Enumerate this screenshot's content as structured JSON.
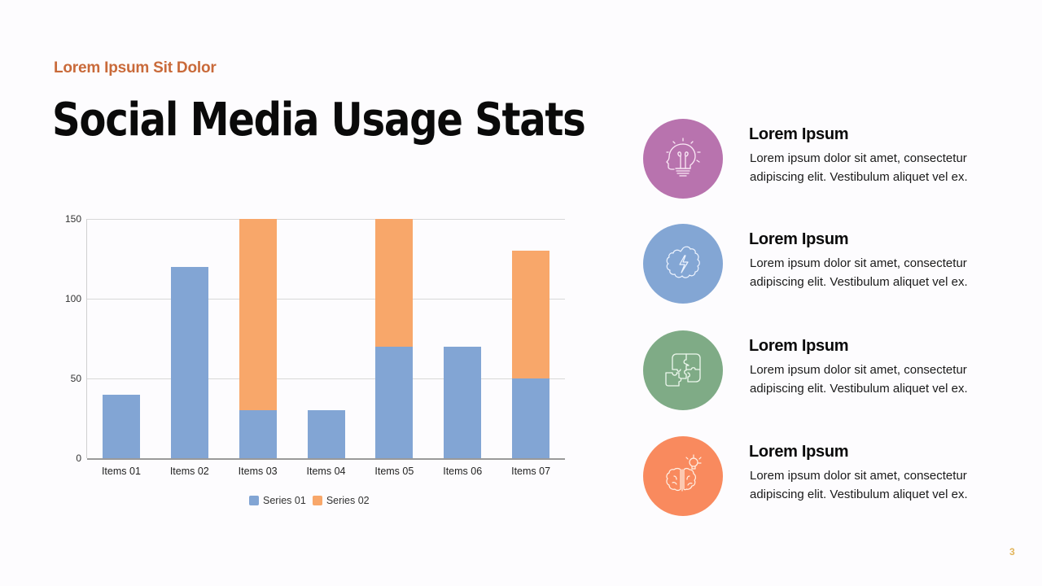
{
  "slide": {
    "subtitle": "Lorem Ipsum Sit Dolor",
    "title": "Social Media Usage Stats",
    "page_number": "3"
  },
  "colors": {
    "accent_subtitle": "#c96a3a",
    "series_01": "#82a5d4",
    "series_02": "#f8a76a",
    "page_number": "#e2b45a"
  },
  "chart_data": {
    "type": "bar",
    "stacked": true,
    "title": "",
    "xlabel": "",
    "ylabel": "",
    "categories": [
      "Items 01",
      "Items 02",
      "Items 03",
      "Items 04",
      "Items 05",
      "Items 06",
      "Items 07"
    ],
    "series": [
      {
        "name": "Series 01",
        "color": "#82a5d4",
        "values": [
          40,
          120,
          30,
          30,
          70,
          70,
          50
        ]
      },
      {
        "name": "Series 02",
        "color": "#f8a76a",
        "values": [
          0,
          0,
          120,
          0,
          80,
          0,
          80
        ]
      }
    ],
    "ylim": [
      0,
      150
    ],
    "yticks": [
      "0",
      "50",
      "100",
      "150"
    ],
    "grid": true,
    "legend_position": "bottom"
  },
  "features": [
    {
      "title": "Lorem Ipsum",
      "body": "Lorem ipsum dolor sit amet, consectetur adipiscing elit. Vestibulum aliquet vel ex.",
      "icon": "head-lightbulb-icon",
      "color": "#b873ae"
    },
    {
      "title": "Lorem Ipsum",
      "body": "Lorem ipsum dolor sit amet, consectetur adipiscing elit. Vestibulum aliquet vel ex.",
      "icon": "brain-lightning-icon",
      "color": "#83a6d4"
    },
    {
      "title": "Lorem Ipsum",
      "body": "Lorem ipsum dolor sit amet, consectetur adipiscing elit. Vestibulum aliquet vel ex.",
      "icon": "puzzle-icon",
      "color": "#7fab86"
    },
    {
      "title": "Lorem Ipsum",
      "body": "Lorem ipsum dolor sit amet, consectetur adipiscing elit. Vestibulum aliquet vel ex.",
      "icon": "brain-lightbulb-icon",
      "color": "#f98a5e"
    }
  ]
}
